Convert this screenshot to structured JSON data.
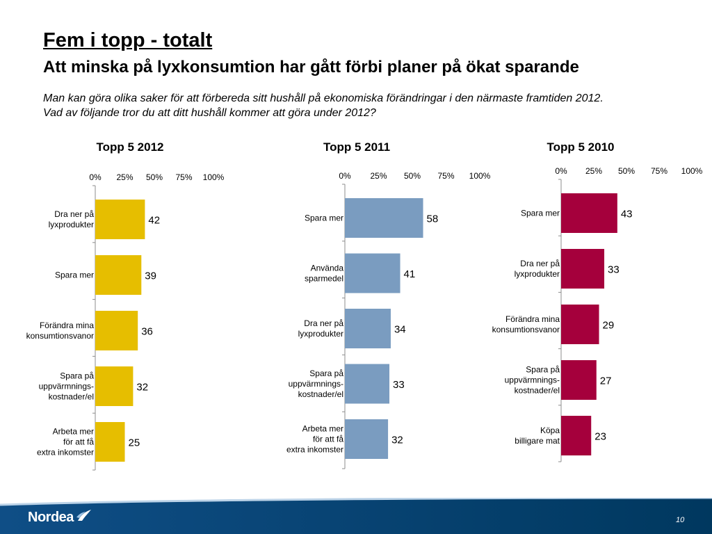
{
  "header": {
    "title": "Fem i topp - totalt",
    "subtitle": "Att minska på lyxkonsumtion har gått förbi planer på ökat sparande",
    "question_lines": [
      "Man kan göra olika saker för att förbereda sitt hushåll på ekonomiska förändringar i den närmaste framtiden 2012.",
      "Vad av följande tror du att ditt hushåll kommer att göra under 2012?"
    ]
  },
  "footer": {
    "logo_text": "Nordea",
    "page_number": "10"
  },
  "chart_data": [
    {
      "type": "bar",
      "orientation": "horizontal",
      "title": "Topp 5 2012",
      "color": "#E6BE00",
      "xlim": [
        0,
        100
      ],
      "ticks": [
        "0%",
        "25%",
        "50%",
        "75%",
        "100%"
      ],
      "categories": [
        [
          "Dra ner på",
          "lyxprodukter"
        ],
        [
          "Spara mer"
        ],
        [
          "Förändra mina",
          "konsumtionsvanor"
        ],
        [
          "Spara på",
          "uppvärmnings-",
          "kostnader/el"
        ],
        [
          "Arbeta mer",
          "för att få",
          "extra inkomster"
        ]
      ],
      "values": [
        42,
        39,
        36,
        32,
        25
      ]
    },
    {
      "type": "bar",
      "orientation": "horizontal",
      "title": "Topp 5 2011",
      "color": "#7A9CC0",
      "xlim": [
        0,
        100
      ],
      "ticks": [
        "0%",
        "25%",
        "50%",
        "75%",
        "100%"
      ],
      "categories": [
        [
          "Spara mer"
        ],
        [
          "Använda",
          "sparmedel"
        ],
        [
          "Dra ner på",
          "lyxprodukter"
        ],
        [
          "Spara på",
          "uppvärmnings-",
          "kostnader/el"
        ],
        [
          "Arbeta mer",
          "för att få",
          "extra inkomster"
        ]
      ],
      "values": [
        58,
        41,
        34,
        33,
        32
      ]
    },
    {
      "type": "bar",
      "orientation": "horizontal",
      "title": "Topp 5 2010",
      "color": "#A5003C",
      "xlim": [
        0,
        100
      ],
      "ticks": [
        "0%",
        "25%",
        "50%",
        "75%",
        "100%"
      ],
      "categories": [
        [
          "Spara mer"
        ],
        [
          "Dra ner på",
          "lyxprodukter"
        ],
        [
          "Förändra mina",
          "konsumtionsvanor"
        ],
        [
          "Spara på",
          "uppvärmnings-",
          "kostnader/el"
        ],
        [
          "Köpa",
          "billigare mat"
        ]
      ],
      "values": [
        43,
        33,
        29,
        27,
        23
      ]
    }
  ]
}
